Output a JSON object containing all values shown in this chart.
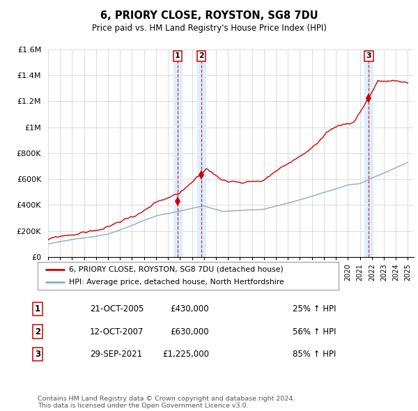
{
  "title": "6, PRIORY CLOSE, ROYSTON, SG8 7DU",
  "subtitle": "Price paid vs. HM Land Registry's House Price Index (HPI)",
  "ylim": [
    0,
    1600000
  ],
  "yticks": [
    0,
    200000,
    400000,
    600000,
    800000,
    1000000,
    1200000,
    1400000,
    1600000
  ],
  "ytick_labels": [
    "£0",
    "£200K",
    "£400K",
    "£600K",
    "£800K",
    "£1M",
    "£1.2M",
    "£1.4M",
    "£1.6M"
  ],
  "sale_dates": [
    2005.8,
    2007.78,
    2021.74
  ],
  "sale_prices": [
    430000,
    630000,
    1225000
  ],
  "sale_labels": [
    "1",
    "2",
    "3"
  ],
  "property_color": "#cc0000",
  "hpi_color": "#88aacc",
  "highlight_color": "#ddeeff",
  "legend_property": "6, PRIORY CLOSE, ROYSTON, SG8 7DU (detached house)",
  "legend_hpi": "HPI: Average price, detached house, North Hertfordshire",
  "table_data": [
    [
      "1",
      "21-OCT-2005",
      "£430,000",
      "25% ↑ HPI"
    ],
    [
      "2",
      "12-OCT-2007",
      "£630,000",
      "56% ↑ HPI"
    ],
    [
      "3",
      "29-SEP-2021",
      "£1,225,000",
      "85% ↑ HPI"
    ]
  ],
  "footnote": "Contains HM Land Registry data © Crown copyright and database right 2024.\nThis data is licensed under the Open Government Licence v3.0.",
  "background_color": "#ffffff",
  "grid_color": "#cccccc",
  "xlim_start": 1995,
  "xlim_end": 2025.5
}
